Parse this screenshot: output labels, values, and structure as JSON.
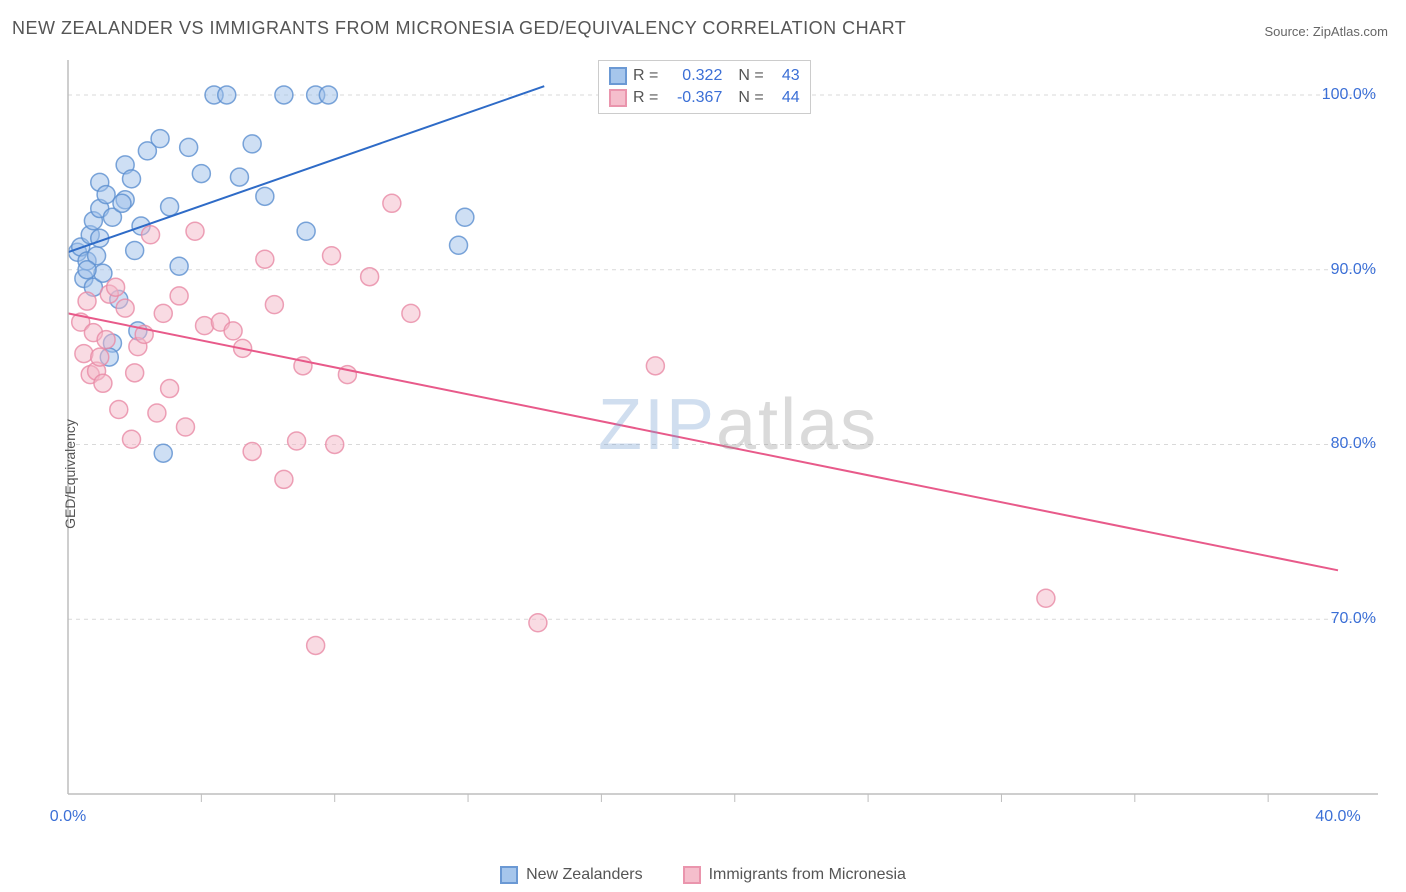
{
  "title": "NEW ZEALANDER VS IMMIGRANTS FROM MICRONESIA GED/EQUIVALENCY CORRELATION CHART",
  "source_label": "Source: ",
  "source_name": "ZipAtlas.com",
  "ylabel": "GED/Equivalency",
  "watermark_a": "ZIP",
  "watermark_b": "atlas",
  "chart": {
    "type": "scatter",
    "xlim": [
      0,
      40
    ],
    "ylim": [
      60,
      102
    ],
    "x_ticks": [
      0,
      40
    ],
    "x_tick_labels": [
      "0.0%",
      "40.0%"
    ],
    "x_minor_ticks": [
      4.2,
      8.4,
      12.6,
      16.8,
      21.0,
      25.2,
      29.4,
      33.6,
      37.8
    ],
    "y_gridlines": [
      70,
      80,
      90,
      100
    ],
    "y_tick_labels": [
      "70.0%",
      "80.0%",
      "90.0%",
      "100.0%"
    ],
    "background_color": "#ffffff",
    "grid_color": "#d9d9d9",
    "axis_color": "#bdbdbd",
    "tick_label_color": "#3b6fd6",
    "marker_radius": 9,
    "marker_opacity": 0.5,
    "line_width": 2
  },
  "series": [
    {
      "name": "New Zealanders",
      "color_fill": "#9dc0ea",
      "color_stroke": "#5b8fd0",
      "line_color": "#2e6bc7",
      "R": "0.322",
      "N": "43",
      "points": [
        [
          0.3,
          91.0
        ],
        [
          0.4,
          91.3
        ],
        [
          0.5,
          89.5
        ],
        [
          0.6,
          90.5
        ],
        [
          0.7,
          92.0
        ],
        [
          0.8,
          89.0
        ],
        [
          0.8,
          92.8
        ],
        [
          0.9,
          90.8
        ],
        [
          1.0,
          93.5
        ],
        [
          1.0,
          95.0
        ],
        [
          1.1,
          89.8
        ],
        [
          1.2,
          94.3
        ],
        [
          1.4,
          93.0
        ],
        [
          1.4,
          85.8
        ],
        [
          1.6,
          88.3
        ],
        [
          1.8,
          96.0
        ],
        [
          1.8,
          94.0
        ],
        [
          2.0,
          95.2
        ],
        [
          2.2,
          86.5
        ],
        [
          2.3,
          92.5
        ],
        [
          2.5,
          96.8
        ],
        [
          2.9,
          97.5
        ],
        [
          3.0,
          79.5
        ],
        [
          3.2,
          93.6
        ],
        [
          3.5,
          90.2
        ],
        [
          3.8,
          97.0
        ],
        [
          4.2,
          95.5
        ],
        [
          4.6,
          100.0
        ],
        [
          5.0,
          100.0
        ],
        [
          5.4,
          95.3
        ],
        [
          5.8,
          97.2
        ],
        [
          6.2,
          94.2
        ],
        [
          6.8,
          100.0
        ],
        [
          7.5,
          92.2
        ],
        [
          7.8,
          100.0
        ],
        [
          8.2,
          100.0
        ],
        [
          12.3,
          91.4
        ],
        [
          12.5,
          93.0
        ],
        [
          0.6,
          90.0
        ],
        [
          1.0,
          91.8
        ],
        [
          1.3,
          85.0
        ],
        [
          1.7,
          93.8
        ],
        [
          2.1,
          91.1
        ]
      ],
      "trend": {
        "x1": 0,
        "y1": 91.0,
        "x2": 15.0,
        "y2": 100.5
      }
    },
    {
      "name": "Immigrants from Micronesia",
      "color_fill": "#f4b7c7",
      "color_stroke": "#e88aa5",
      "line_color": "#e85a8a",
      "R": "-0.367",
      "N": "44",
      "points": [
        [
          0.4,
          87.0
        ],
        [
          0.5,
          85.2
        ],
        [
          0.6,
          88.2
        ],
        [
          0.7,
          84.0
        ],
        [
          0.8,
          86.4
        ],
        [
          0.9,
          84.2
        ],
        [
          1.0,
          85.0
        ],
        [
          1.1,
          83.5
        ],
        [
          1.3,
          88.6
        ],
        [
          1.5,
          89.0
        ],
        [
          1.6,
          82.0
        ],
        [
          1.8,
          87.8
        ],
        [
          2.0,
          80.3
        ],
        [
          2.2,
          85.6
        ],
        [
          2.4,
          86.3
        ],
        [
          2.6,
          92.0
        ],
        [
          2.8,
          81.8
        ],
        [
          3.0,
          87.5
        ],
        [
          3.2,
          83.2
        ],
        [
          3.5,
          88.5
        ],
        [
          3.7,
          81.0
        ],
        [
          4.0,
          92.2
        ],
        [
          4.3,
          86.8
        ],
        [
          4.8,
          87.0
        ],
        [
          5.2,
          86.5
        ],
        [
          5.5,
          85.5
        ],
        [
          5.8,
          79.6
        ],
        [
          6.2,
          90.6
        ],
        [
          6.5,
          88.0
        ],
        [
          6.8,
          78.0
        ],
        [
          7.2,
          80.2
        ],
        [
          7.4,
          84.5
        ],
        [
          7.8,
          68.5
        ],
        [
          8.3,
          90.8
        ],
        [
          8.4,
          80.0
        ],
        [
          8.8,
          84.0
        ],
        [
          9.5,
          89.6
        ],
        [
          10.2,
          93.8
        ],
        [
          10.8,
          87.5
        ],
        [
          14.8,
          69.8
        ],
        [
          18.5,
          84.5
        ],
        [
          30.8,
          71.2
        ],
        [
          1.2,
          86.0
        ],
        [
          2.1,
          84.1
        ]
      ],
      "trend": {
        "x1": 0,
        "y1": 87.5,
        "x2": 40,
        "y2": 72.8
      }
    }
  ],
  "legend": {
    "bottom": [
      {
        "label": "New Zealanders",
        "fill": "#9dc0ea",
        "stroke": "#5b8fd0"
      },
      {
        "label": "Immigrants from Micronesia",
        "fill": "#f4b7c7",
        "stroke": "#e88aa5"
      }
    ]
  },
  "stat_labels": {
    "r": "R =",
    "n": "N ="
  }
}
